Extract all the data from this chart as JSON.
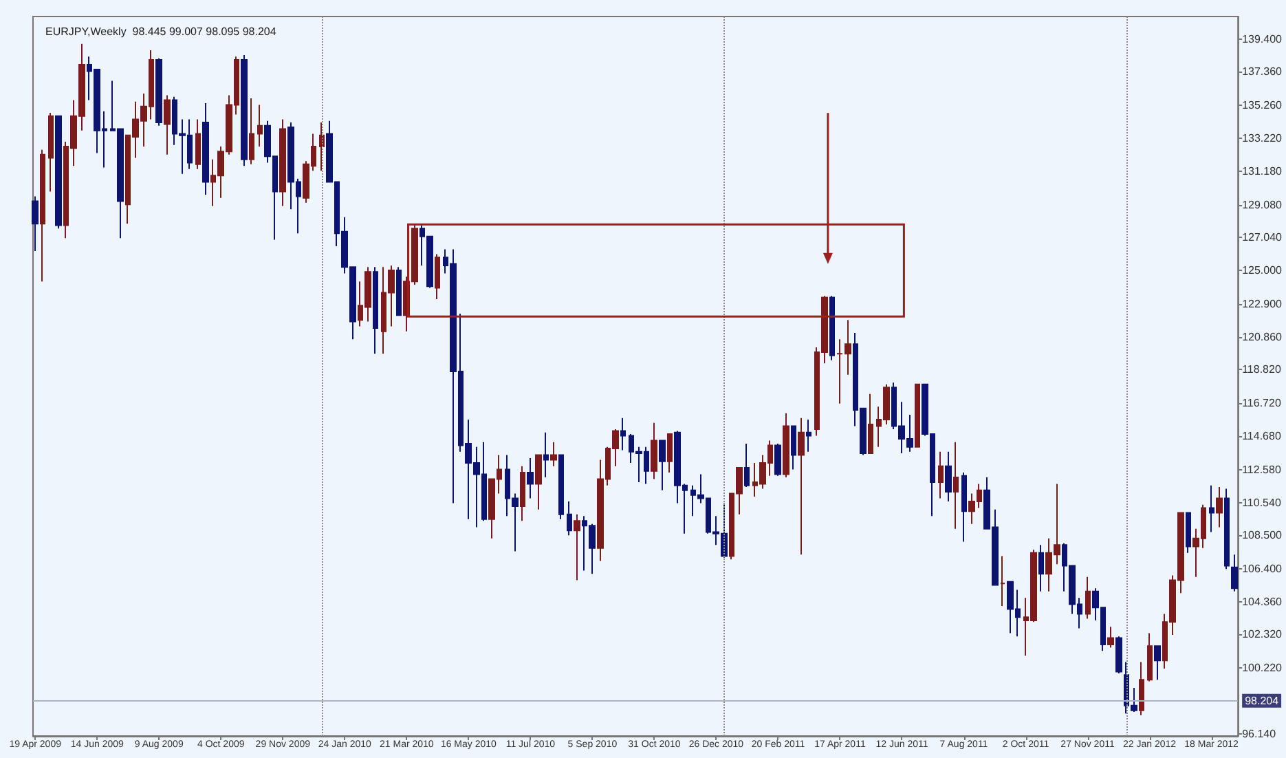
{
  "chart_data": {
    "type": "candlestick",
    "title": "EURJPY,Weekly  98.445 99.007 98.095 98.204",
    "colors": [
      "#0d1470",
      "#7a1c1c",
      "#7a1c1c",
      "#0d1470",
      "#7a1c1c",
      "#7a1c1c",
      "#7a1c1c",
      "#0d1470",
      "#0d1470",
      "#0d1470",
      "#0d1470",
      "#0d1470",
      "#7a1c1c",
      "#7a1c1c",
      "#7a1c1c",
      "#7a1c1c",
      "#0d1470",
      "#7a1c1c",
      "#0d1470",
      "#0d1470",
      "#0d1470",
      "#7a1c1c",
      "#0d1470",
      "#7a1c1c",
      "#7a1c1c",
      "#7a1c1c",
      "#7a1c1c",
      "#0d1470",
      "#7a1c1c",
      "#7a1c1c",
      "#0d1470",
      "#0d1470",
      "#7a1c1c",
      "#0d1470",
      "#0d1470",
      "#7a1c1c",
      "#7a1c1c",
      "#7a1c1c",
      "#0d1470",
      "#0d1470",
      "#0d1470",
      "#0d1470",
      "#7a1c1c",
      "#7a1c1c",
      "#0d1470",
      "#7a1c1c",
      "#7a1c1c",
      "#0d1470",
      "#7a1c1c",
      "#7a1c1c",
      "#0d1470",
      "#0d1470",
      "#7a1c1c",
      "#0d1470",
      "#0d1470",
      "#0d1470",
      "#0d1470",
      "#0d1470",
      "#0d1470",
      "#7a1c1c",
      "#7a1c1c",
      "#0d1470",
      "#0d1470",
      "#7a1c1c",
      "#0d1470",
      "#7a1c1c",
      "#0d1470",
      "#7a1c1c",
      "#0d1470",
      "#0d1470",
      "#7a1c1c",
      "#0d1470",
      "#0d1470",
      "#7a1c1c",
      "#7a1c1c",
      "#7a1c1c",
      "#0d1470",
      "#0d1470",
      "#0d1470",
      "#0d1470",
      "#7a1c1c",
      "#0d1470",
      "#7a1c1c",
      "#0d1470",
      "#0d1470",
      "#0d1470",
      "#0d1470",
      "#0d1470",
      "#0d1470",
      "#0d1470",
      "#7a1c1c",
      "#7a1c1c",
      "#0d1470",
      "#7a1c1c",
      "#7a1c1c",
      "#7a1c1c",
      "#0d1470",
      "#7a1c1c",
      "#0d1470",
      "#7a1c1c",
      "#0d1470",
      "#7a1c1c",
      "#7a1c1c",
      "#0d1470",
      "#7a1c1c",
      "#7a1c1c",
      "#0d1470",
      "#0d1470",
      "#7a1c1c",
      "#7a1c1c",
      "#7a1c1c",
      "#0d1470",
      "#0d1470",
      "#0d1470",
      "#7a1c1c",
      "#0d1470",
      "#0d1470",
      "#7a1c1c",
      "#0d1470",
      "#7a1c1c",
      "#0d1470",
      "#7a1c1c",
      "#7a1c1c",
      "#0d1470",
      "#0d1470",
      "#7a1c1c",
      "#0d1470",
      "#0d1470",
      "#7a1c1c",
      "#7a1c1c",
      "#0d1470",
      "#7a1c1c",
      "#7a1c1c",
      "#0d1470",
      "#0d1470",
      "#0d1470",
      "#7a1c1c",
      "#0d1470",
      "#0d1470",
      "#7a1c1c",
      "#0d1470",
      "#0d1470",
      "#0d1470",
      "#7a1c1c",
      "#7a1c1c",
      "#0d1470",
      "#7a1c1c",
      "#7a1c1c",
      "#7a1c1c",
      "#0d1470",
      "#7a1c1c",
      "#7a1c1c",
      "#0d1470",
      "#7a1c1c",
      "#0d1470",
      "#0d1470"
    ],
    "x": [
      "2009-04-19",
      "2009-04-26",
      "2009-05-03",
      "2009-05-10",
      "2009-05-17",
      "2009-05-24",
      "2009-05-31",
      "2009-06-07",
      "2009-06-14",
      "2009-06-21",
      "2009-06-28",
      "2009-07-05",
      "2009-07-12",
      "2009-07-19",
      "2009-07-26",
      "2009-08-02",
      "2009-08-09",
      "2009-08-16",
      "2009-08-23",
      "2009-08-30",
      "2009-09-06",
      "2009-09-13",
      "2009-09-20",
      "2009-09-27",
      "2009-10-04",
      "2009-10-11",
      "2009-10-18",
      "2009-10-25",
      "2009-11-01",
      "2009-11-08",
      "2009-11-15",
      "2009-11-22",
      "2009-11-29",
      "2009-12-06",
      "2009-12-13",
      "2009-12-20",
      "2009-12-27",
      "2010-01-03",
      "2010-01-10",
      "2010-01-17",
      "2010-01-24",
      "2010-01-31",
      "2010-02-07",
      "2010-02-14",
      "2010-02-21",
      "2010-02-28",
      "2010-03-07",
      "2010-03-14",
      "2010-03-21",
      "2010-03-28",
      "2010-04-04",
      "2010-04-11",
      "2010-04-18",
      "2010-04-25",
      "2010-05-02",
      "2010-05-09",
      "2010-05-16",
      "2010-05-23",
      "2010-05-30",
      "2010-06-06",
      "2010-06-13",
      "2010-06-20",
      "2010-06-27",
      "2010-07-04",
      "2010-07-11",
      "2010-07-18",
      "2010-07-25",
      "2010-08-01",
      "2010-08-08",
      "2010-08-15",
      "2010-08-22",
      "2010-08-29",
      "2010-09-05",
      "2010-09-12",
      "2010-09-19",
      "2010-09-26",
      "2010-10-03",
      "2010-10-10",
      "2010-10-17",
      "2010-10-24",
      "2010-10-31",
      "2010-11-07",
      "2010-11-14",
      "2010-11-21",
      "2010-11-28",
      "2010-12-05",
      "2010-12-12",
      "2010-12-19",
      "2010-12-26",
      "2011-01-02",
      "2011-01-09",
      "2011-01-16",
      "2011-01-23",
      "2011-01-30",
      "2011-02-06",
      "2011-02-13",
      "2011-02-20",
      "2011-02-27",
      "2011-03-06",
      "2011-03-13",
      "2011-03-20",
      "2011-03-27",
      "2011-04-03",
      "2011-04-10",
      "2011-04-17",
      "2011-04-24",
      "2011-05-01",
      "2011-05-08",
      "2011-05-15",
      "2011-05-22",
      "2011-05-29",
      "2011-06-05",
      "2011-06-12",
      "2011-06-19",
      "2011-06-26",
      "2011-07-03",
      "2011-07-10",
      "2011-07-17",
      "2011-07-24",
      "2011-07-31",
      "2011-08-07",
      "2011-08-14",
      "2011-08-21",
      "2011-08-28",
      "2011-09-04",
      "2011-09-11",
      "2011-09-18",
      "2011-09-25",
      "2011-10-02",
      "2011-10-09",
      "2011-10-16",
      "2011-10-23",
      "2011-10-30",
      "2011-11-06",
      "2011-11-13",
      "2011-11-20",
      "2011-11-27",
      "2011-12-04",
      "2011-12-11",
      "2011-12-18",
      "2011-12-25",
      "2012-01-01",
      "2012-01-08",
      "2012-01-15",
      "2012-01-22",
      "2012-01-29",
      "2012-02-05",
      "2012-02-12",
      "2012-02-19",
      "2012-02-26",
      "2012-03-04",
      "2012-03-11",
      "2012-03-18",
      "2012-03-25",
      "2012-04-01",
      "2012-04-08"
    ],
    "ohlc": [
      [
        129.3,
        129.6,
        126.2,
        127.9
      ],
      [
        127.9,
        132.5,
        124.3,
        132.2
      ],
      [
        132.0,
        134.8,
        129.9,
        134.6
      ],
      [
        134.6,
        134.6,
        127.6,
        127.8
      ],
      [
        127.8,
        133.0,
        127.0,
        132.7
      ],
      [
        132.6,
        135.6,
        131.5,
        134.6
      ],
      [
        134.6,
        139.1,
        133.7,
        137.8
      ],
      [
        137.8,
        138.3,
        135.6,
        137.4
      ],
      [
        137.5,
        137.5,
        132.3,
        133.7
      ],
      [
        133.8,
        134.9,
        131.4,
        133.7
      ],
      [
        133.8,
        136.8,
        133.7,
        133.7
      ],
      [
        133.8,
        133.8,
        127.0,
        129.3
      ],
      [
        129.1,
        133.4,
        127.9,
        133.4
      ],
      [
        133.3,
        135.5,
        132.0,
        134.4
      ],
      [
        134.3,
        136.0,
        132.7,
        135.2
      ],
      [
        135.2,
        138.7,
        134.4,
        138.1
      ],
      [
        138.1,
        138.2,
        134.0,
        134.2
      ],
      [
        134.1,
        135.9,
        132.2,
        135.6
      ],
      [
        135.6,
        135.8,
        132.8,
        133.5
      ],
      [
        133.5,
        134.4,
        131.0,
        133.4
      ],
      [
        133.4,
        134.4,
        131.3,
        131.7
      ],
      [
        131.6,
        134.4,
        131.3,
        133.5
      ],
      [
        134.2,
        135.4,
        129.7,
        130.5
      ],
      [
        130.5,
        131.9,
        129.0,
        130.9
      ],
      [
        130.9,
        132.7,
        129.5,
        132.4
      ],
      [
        132.4,
        135.9,
        132.2,
        135.3
      ],
      [
        135.3,
        138.3,
        134.7,
        138.1
      ],
      [
        138.1,
        138.4,
        131.5,
        131.9
      ],
      [
        131.9,
        135.7,
        131.6,
        133.5
      ],
      [
        133.5,
        135.3,
        132.7,
        134.0
      ],
      [
        134.0,
        134.3,
        131.7,
        132.1
      ],
      [
        132.1,
        132.1,
        126.9,
        129.9
      ],
      [
        129.9,
        134.4,
        129.0,
        133.8
      ],
      [
        133.9,
        134.2,
        128.8,
        130.5
      ],
      [
        130.5,
        130.7,
        127.3,
        129.6
      ],
      [
        129.5,
        131.8,
        129.2,
        131.6
      ],
      [
        131.5,
        133.5,
        131.2,
        132.7
      ],
      [
        132.7,
        134.2,
        131.2,
        133.4
      ],
      [
        133.5,
        134.3,
        130.5,
        130.5
      ],
      [
        130.5,
        130.5,
        126.5,
        127.3
      ],
      [
        127.4,
        128.3,
        124.8,
        125.2
      ],
      [
        125.2,
        125.2,
        120.7,
        121.8
      ],
      [
        121.9,
        124.3,
        121.5,
        122.8
      ],
      [
        122.7,
        125.2,
        121.8,
        124.9
      ],
      [
        124.9,
        125.2,
        119.8,
        121.4
      ],
      [
        121.2,
        125.2,
        119.8,
        123.6
      ],
      [
        123.6,
        125.3,
        121.5,
        125.0
      ],
      [
        125.0,
        125.2,
        122.2,
        122.2
      ],
      [
        122.2,
        124.6,
        121.2,
        124.3
      ],
      [
        124.3,
        127.9,
        124.1,
        127.6
      ],
      [
        127.6,
        127.8,
        125.3,
        127.1
      ],
      [
        127.1,
        127.1,
        123.9,
        124.0
      ],
      [
        123.9,
        126.0,
        123.2,
        125.8
      ],
      [
        125.8,
        126.3,
        124.8,
        125.3
      ],
      [
        125.4,
        126.3,
        110.5,
        118.7
      ],
      [
        118.7,
        122.3,
        113.7,
        114.1
      ],
      [
        114.2,
        115.7,
        109.5,
        113.0
      ],
      [
        113.0,
        114.0,
        109.0,
        112.3
      ],
      [
        112.3,
        114.3,
        109.4,
        109.5
      ],
      [
        109.5,
        112.0,
        108.3,
        112.0
      ],
      [
        112.0,
        113.5,
        111.1,
        112.6
      ],
      [
        112.6,
        113.5,
        109.7,
        110.8
      ],
      [
        110.8,
        111.1,
        107.5,
        110.3
      ],
      [
        110.3,
        112.8,
        109.4,
        112.4
      ],
      [
        112.4,
        113.3,
        110.8,
        111.7
      ],
      [
        111.7,
        113.5,
        110.1,
        113.5
      ],
      [
        113.5,
        114.9,
        112.1,
        113.2
      ],
      [
        113.2,
        114.3,
        112.8,
        113.5
      ],
      [
        113.5,
        113.5,
        109.5,
        109.8
      ],
      [
        109.8,
        110.6,
        108.5,
        108.8
      ],
      [
        108.8,
        109.8,
        105.7,
        109.4
      ],
      [
        109.4,
        109.7,
        106.3,
        109.1
      ],
      [
        109.1,
        109.2,
        106.1,
        107.7
      ],
      [
        107.7,
        113.2,
        106.9,
        112.0
      ],
      [
        112.0,
        114.0,
        111.6,
        113.9
      ],
      [
        113.9,
        115.1,
        112.8,
        115.0
      ],
      [
        115.0,
        115.8,
        113.8,
        114.7
      ],
      [
        114.7,
        114.8,
        113.0,
        113.7
      ],
      [
        113.7,
        114.0,
        111.8,
        113.6
      ],
      [
        113.7,
        114.0,
        111.7,
        112.5
      ],
      [
        112.5,
        115.5,
        112.0,
        114.4
      ],
      [
        114.4,
        114.4,
        111.3,
        113.1
      ],
      [
        113.1,
        114.8,
        112.4,
        114.8
      ],
      [
        114.9,
        115.0,
        110.5,
        111.6
      ],
      [
        111.6,
        111.7,
        108.6,
        111.3
      ],
      [
        111.3,
        111.6,
        109.7,
        111.0
      ],
      [
        111.0,
        112.3,
        110.5,
        110.8
      ],
      [
        110.8,
        110.8,
        108.6,
        108.7
      ],
      [
        108.7,
        109.7,
        107.9,
        108.6
      ],
      [
        108.6,
        110.5,
        107.1,
        107.2
      ],
      [
        107.2,
        111.1,
        107.0,
        111.1
      ],
      [
        111.1,
        112.7,
        109.8,
        112.7
      ],
      [
        112.7,
        114.2,
        111.5,
        111.6
      ],
      [
        111.6,
        113.0,
        110.9,
        111.8
      ],
      [
        111.7,
        113.5,
        111.4,
        113.0
      ],
      [
        113.0,
        114.4,
        112.2,
        114.1
      ],
      [
        114.1,
        114.2,
        112.2,
        112.3
      ],
      [
        112.3,
        116.1,
        112.1,
        115.3
      ],
      [
        115.3,
        115.3,
        112.6,
        113.5
      ],
      [
        113.5,
        115.8,
        107.3,
        114.9
      ],
      [
        114.9,
        115.7,
        113.7,
        114.7
      ],
      [
        115.1,
        120.2,
        114.7,
        119.9
      ],
      [
        119.9,
        123.4,
        119.2,
        123.3
      ],
      [
        123.3,
        123.4,
        119.4,
        119.7
      ],
      [
        119.8,
        120.7,
        116.7,
        119.8
      ],
      [
        119.8,
        121.9,
        118.5,
        120.4
      ],
      [
        120.4,
        121.1,
        115.3,
        116.3
      ],
      [
        116.4,
        116.4,
        113.5,
        113.6
      ],
      [
        113.6,
        117.3,
        113.6,
        115.4
      ],
      [
        115.3,
        116.5,
        114.0,
        115.7
      ],
      [
        115.7,
        117.9,
        115.4,
        117.7
      ],
      [
        117.7,
        118.0,
        115.1,
        115.3
      ],
      [
        115.3,
        116.8,
        113.6,
        114.5
      ],
      [
        114.5,
        116.0,
        113.7,
        114.0
      ],
      [
        114.0,
        117.9,
        114.0,
        117.9
      ],
      [
        117.9,
        117.9,
        114.7,
        114.8
      ],
      [
        114.8,
        114.8,
        109.7,
        111.8
      ],
      [
        111.8,
        113.7,
        110.8,
        112.8
      ],
      [
        112.8,
        113.7,
        110.6,
        111.2
      ],
      [
        111.2,
        114.3,
        108.9,
        112.1
      ],
      [
        112.2,
        112.4,
        108.1,
        110.0
      ],
      [
        110.0,
        111.1,
        109.2,
        110.6
      ],
      [
        110.6,
        111.7,
        110.2,
        111.3
      ],
      [
        111.3,
        112.1,
        108.9,
        108.9
      ],
      [
        109.0,
        110.1,
        105.4,
        105.4
      ],
      [
        105.5,
        107.2,
        104.1,
        105.5
      ],
      [
        105.6,
        105.6,
        102.4,
        103.9
      ],
      [
        103.9,
        105.1,
        102.2,
        103.4
      ],
      [
        103.2,
        104.6,
        101.0,
        103.4
      ],
      [
        103.2,
        107.6,
        103.1,
        107.4
      ],
      [
        107.4,
        107.9,
        105.0,
        106.1
      ],
      [
        106.1,
        108.3,
        105.0,
        107.4
      ],
      [
        107.3,
        111.7,
        106.7,
        107.9
      ],
      [
        107.9,
        108.0,
        105.0,
        106.6
      ],
      [
        106.6,
        106.6,
        103.6,
        104.2
      ],
      [
        104.2,
        104.6,
        102.7,
        103.6
      ],
      [
        103.6,
        105.9,
        103.3,
        105.0
      ],
      [
        105.0,
        105.2,
        103.2,
        104.0
      ],
      [
        104.0,
        104.0,
        101.3,
        101.7
      ],
      [
        101.7,
        102.8,
        101.5,
        102.1
      ],
      [
        102.1,
        102.2,
        99.9,
        100.0
      ],
      [
        99.8,
        100.6,
        97.4,
        97.9
      ],
      [
        97.9,
        99.0,
        97.5,
        97.6
      ],
      [
        97.6,
        100.6,
        97.3,
        99.5
      ],
      [
        99.5,
        102.4,
        99.4,
        101.6
      ],
      [
        101.6,
        101.6,
        99.5,
        100.7
      ],
      [
        100.7,
        103.6,
        100.2,
        103.1
      ],
      [
        103.1,
        106.0,
        102.3,
        105.7
      ],
      [
        105.7,
        109.9,
        104.9,
        109.9
      ],
      [
        109.9,
        109.9,
        107.4,
        107.8
      ],
      [
        107.8,
        108.9,
        105.9,
        108.3
      ],
      [
        108.3,
        110.4,
        107.7,
        110.2
      ],
      [
        110.2,
        111.6,
        108.7,
        109.9
      ],
      [
        109.9,
        111.5,
        109.0,
        110.8
      ],
      [
        110.8,
        111.4,
        106.4,
        106.6
      ],
      [
        106.5,
        107.3,
        105.0,
        105.2
      ]
    ],
    "xlim": [
      "2009-04-17",
      "2012-04-11"
    ],
    "xticks": [
      {
        "value": "2009-04-19",
        "label": "19 Apr 2009"
      },
      {
        "value": "2009-06-14",
        "label": "14 Jun 2009"
      },
      {
        "value": "2009-08-09",
        "label": "9 Aug 2009"
      },
      {
        "value": "2009-10-04",
        "label": "4 Oct 2009"
      },
      {
        "value": "2009-11-29",
        "label": "29 Nov 2009"
      },
      {
        "value": "2010-01-24",
        "label": "24 Jan 2010"
      },
      {
        "value": "2010-03-21",
        "label": "21 Mar 2010"
      },
      {
        "value": "2010-05-16",
        "label": "16 May 2010"
      },
      {
        "value": "2010-07-11",
        "label": "11 Jul 2010"
      },
      {
        "value": "2010-09-05",
        "label": "5 Sep 2010"
      },
      {
        "value": "2010-10-31",
        "label": "31 Oct 2010"
      },
      {
        "value": "2010-12-26",
        "label": "26 Dec 2010"
      },
      {
        "value": "2011-02-20",
        "label": "20 Feb 2011"
      },
      {
        "value": "2011-04-17",
        "label": "17 Apr 2011"
      },
      {
        "value": "2011-06-12",
        "label": "12 Jun 2011"
      },
      {
        "value": "2011-08-07",
        "label": "7 Aug 2011"
      },
      {
        "value": "2011-10-02",
        "label": "2 Oct 2011"
      },
      {
        "value": "2011-11-27",
        "label": "27 Nov 2011"
      },
      {
        "value": "2012-01-22",
        "label": "22 Jan 2012"
      },
      {
        "value": "2012-03-18",
        "label": "18 Mar 2012"
      }
    ],
    "ylim": [
      96.0,
      140.8
    ],
    "yticks": [
      {
        "value": 139.4,
        "label": "139.400"
      },
      {
        "value": 137.36,
        "label": "137.360"
      },
      {
        "value": 135.26,
        "label": "135.260"
      },
      {
        "value": 133.22,
        "label": "133.220"
      },
      {
        "value": 131.18,
        "label": "131.180"
      },
      {
        "value": 129.08,
        "label": "129.080"
      },
      {
        "value": 127.04,
        "label": "127.040"
      },
      {
        "value": 125.0,
        "label": "125.000"
      },
      {
        "value": 122.9,
        "label": "122.900"
      },
      {
        "value": 120.86,
        "label": "120.860"
      },
      {
        "value": 118.82,
        "label": "118.820"
      },
      {
        "value": 116.72,
        "label": "116.720"
      },
      {
        "value": 114.68,
        "label": "114.680"
      },
      {
        "value": 112.58,
        "label": "112.580"
      },
      {
        "value": 110.54,
        "label": "110.540"
      },
      {
        "value": 108.5,
        "label": "108.500"
      },
      {
        "value": 106.4,
        "label": "106.400"
      },
      {
        "value": 104.36,
        "label": "104.360"
      },
      {
        "value": 102.32,
        "label": "102.320"
      },
      {
        "value": 100.22,
        "label": "100.220"
      },
      {
        "value": 96.14,
        "label": "96.140"
      }
    ],
    "ref_lines": [
      {
        "axis": "y",
        "value": 98.204,
        "label": "98.204",
        "color": "#a9b4c8",
        "line_style": "solid"
      },
      {
        "axis": "x",
        "value": "2010-01-03",
        "color": "#8c8c8c",
        "line_style": "dotted"
      },
      {
        "axis": "x",
        "value": "2011-01-02",
        "color": "#8c8c8c",
        "line_style": "dotted"
      },
      {
        "axis": "x",
        "value": "2012-01-01",
        "color": "#8c8c8c",
        "line_style": "dotted"
      }
    ]
  }
}
